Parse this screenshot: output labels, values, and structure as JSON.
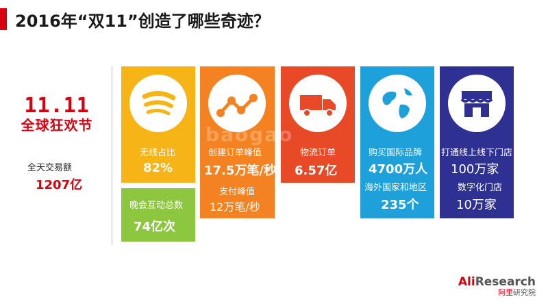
{
  "title": "2016年“双11”创造了哪些奇迹？",
  "logo": {
    "dots": "11.11",
    "name": "全球狂欢节"
  },
  "total": {
    "label": "全天交易额",
    "value": "1207亿"
  },
  "cards": {
    "wireless": {
      "label": "无线占比",
      "value": "82%",
      "color": "#f7b417",
      "icon": "wifi-icon"
    },
    "gala": {
      "label": "晚会互动总数",
      "value": "74亿次",
      "color": "#8dc63f"
    },
    "orders": {
      "label1": "创建订单峰值",
      "value1": "17.5万笔/秒",
      "label2": "支付峰值",
      "value2": "12万笔/秒",
      "color": "#f58220",
      "icon": "trend-chart-icon"
    },
    "logistics": {
      "label": "物流订单",
      "value": "6.57亿",
      "color": "#e84a27",
      "icon": "delivery-truck-icon"
    },
    "global": {
      "label1": "购买国际品牌",
      "value1": "4700万人",
      "label2": "海外国家和地区",
      "value2": "235个",
      "color": "#1ea1db",
      "icon": "globe-icon"
    },
    "stores": {
      "label1": "打通线上线下门店",
      "value1": "100万家",
      "label2": "数字化门店",
      "value2": "10万家",
      "color": "#2e3192",
      "icon": "store-icon"
    }
  },
  "watermark": "baogao",
  "footer": {
    "brand_prefix": "Ali",
    "brand_suffix": "Research",
    "sub_prefix": "阿里",
    "sub_suffix": "研究院"
  }
}
